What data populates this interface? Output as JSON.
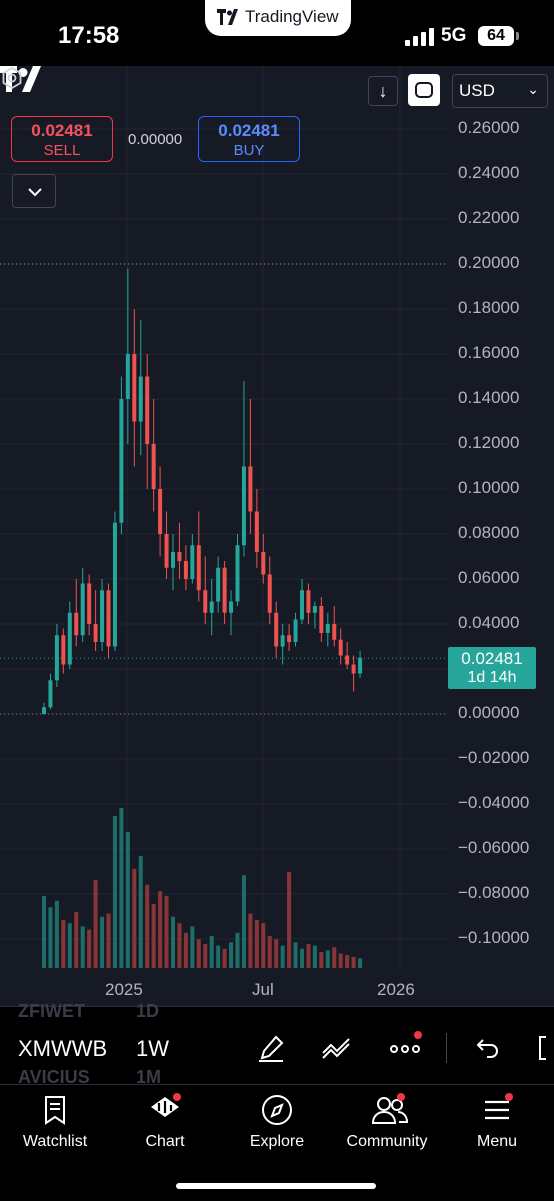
{
  "status_bar": {
    "time": "17:58",
    "network": "5G",
    "battery": "64",
    "app_name": "TradingView"
  },
  "chart_header": {
    "currency": "USD",
    "sell": {
      "price": "0.02481",
      "label": "SELL"
    },
    "buy": {
      "price": "0.02481",
      "label": "BUY"
    },
    "spread": "0.00000"
  },
  "price_tag": {
    "value": "0.02481",
    "countdown": "1d 14h"
  },
  "chart_data": {
    "type": "candlestick",
    "price_axis": {
      "min": -0.11,
      "max": 0.26,
      "tick_step": 0.02,
      "tick_labels": [
        "0.26000",
        "0.24000",
        "0.22000",
        "0.20000",
        "0.18000",
        "0.16000",
        "0.14000",
        "0.12000",
        "0.10000",
        "0.08000",
        "0.06000",
        "0.04000",
        "0.02000",
        "0.00000",
        "−0.02000",
        "−0.04000",
        "−0.06000",
        "−0.08000",
        "−0.10000"
      ]
    },
    "time_axis_labels": [
      "2025",
      "Jul",
      "2026"
    ],
    "last_price": 0.02481,
    "high_line": 0.2,
    "candles": [
      [
        0.0,
        0.005,
        0.0,
        0.003
      ],
      [
        0.003,
        0.018,
        0.002,
        0.015
      ],
      [
        0.015,
        0.04,
        0.012,
        0.035
      ],
      [
        0.035,
        0.038,
        0.018,
        0.022
      ],
      [
        0.022,
        0.05,
        0.02,
        0.045
      ],
      [
        0.045,
        0.06,
        0.03,
        0.035
      ],
      [
        0.035,
        0.065,
        0.032,
        0.058
      ],
      [
        0.058,
        0.062,
        0.035,
        0.04
      ],
      [
        0.04,
        0.055,
        0.028,
        0.032
      ],
      [
        0.032,
        0.06,
        0.028,
        0.055
      ],
      [
        0.055,
        0.058,
        0.025,
        0.03
      ],
      [
        0.03,
        0.09,
        0.028,
        0.085
      ],
      [
        0.085,
        0.15,
        0.08,
        0.14
      ],
      [
        0.14,
        0.198,
        0.12,
        0.16
      ],
      [
        0.16,
        0.18,
        0.11,
        0.13
      ],
      [
        0.13,
        0.175,
        0.115,
        0.15
      ],
      [
        0.15,
        0.16,
        0.1,
        0.12
      ],
      [
        0.12,
        0.14,
        0.09,
        0.1
      ],
      [
        0.1,
        0.11,
        0.07,
        0.08
      ],
      [
        0.08,
        0.09,
        0.06,
        0.065
      ],
      [
        0.065,
        0.08,
        0.055,
        0.072
      ],
      [
        0.072,
        0.085,
        0.06,
        0.068
      ],
      [
        0.068,
        0.075,
        0.055,
        0.06
      ],
      [
        0.06,
        0.08,
        0.058,
        0.075
      ],
      [
        0.075,
        0.09,
        0.05,
        0.055
      ],
      [
        0.055,
        0.07,
        0.04,
        0.045
      ],
      [
        0.045,
        0.06,
        0.035,
        0.05
      ],
      [
        0.05,
        0.07,
        0.045,
        0.065
      ],
      [
        0.065,
        0.068,
        0.04,
        0.045
      ],
      [
        0.045,
        0.055,
        0.035,
        0.05
      ],
      [
        0.05,
        0.08,
        0.048,
        0.075
      ],
      [
        0.075,
        0.148,
        0.07,
        0.11
      ],
      [
        0.11,
        0.14,
        0.08,
        0.09
      ],
      [
        0.09,
        0.1,
        0.065,
        0.072
      ],
      [
        0.072,
        0.08,
        0.058,
        0.062
      ],
      [
        0.062,
        0.07,
        0.04,
        0.045
      ],
      [
        0.045,
        0.05,
        0.025,
        0.03
      ],
      [
        0.03,
        0.04,
        0.022,
        0.035
      ],
      [
        0.035,
        0.04,
        0.028,
        0.032
      ],
      [
        0.032,
        0.045,
        0.03,
        0.042
      ],
      [
        0.042,
        0.06,
        0.04,
        0.055
      ],
      [
        0.055,
        0.058,
        0.04,
        0.045
      ],
      [
        0.045,
        0.05,
        0.038,
        0.048
      ],
      [
        0.048,
        0.052,
        0.032,
        0.036
      ],
      [
        0.036,
        0.045,
        0.03,
        0.04
      ],
      [
        0.04,
        0.048,
        0.03,
        0.033
      ],
      [
        0.033,
        0.038,
        0.022,
        0.026
      ],
      [
        0.026,
        0.032,
        0.02,
        0.022
      ],
      [
        0.022,
        0.026,
        0.01,
        0.018
      ],
      [
        0.018,
        0.028,
        0.016,
        0.025
      ]
    ],
    "volume": [
      0.45,
      0.38,
      0.42,
      0.3,
      0.28,
      0.35,
      0.26,
      0.24,
      0.55,
      0.32,
      0.34,
      0.95,
      1.0,
      0.85,
      0.62,
      0.7,
      0.52,
      0.4,
      0.48,
      0.45,
      0.32,
      0.28,
      0.22,
      0.26,
      0.18,
      0.15,
      0.2,
      0.14,
      0.12,
      0.16,
      0.22,
      0.58,
      0.34,
      0.3,
      0.28,
      0.2,
      0.18,
      0.14,
      0.6,
      0.16,
      0.12,
      0.15,
      0.14,
      0.1,
      0.11,
      0.13,
      0.09,
      0.08,
      0.07,
      0.06
    ]
  },
  "toolbar": {
    "symbol": "XMWWB",
    "interval": "1W",
    "symbol_above": "ZFIWET",
    "interval_above": "1D",
    "symbol_below": "AVICIUS",
    "interval_below": "1M"
  },
  "nav": {
    "items": [
      {
        "label": "Watchlist"
      },
      {
        "label": "Chart"
      },
      {
        "label": "Explore"
      },
      {
        "label": "Community"
      },
      {
        "label": "Menu"
      }
    ]
  }
}
